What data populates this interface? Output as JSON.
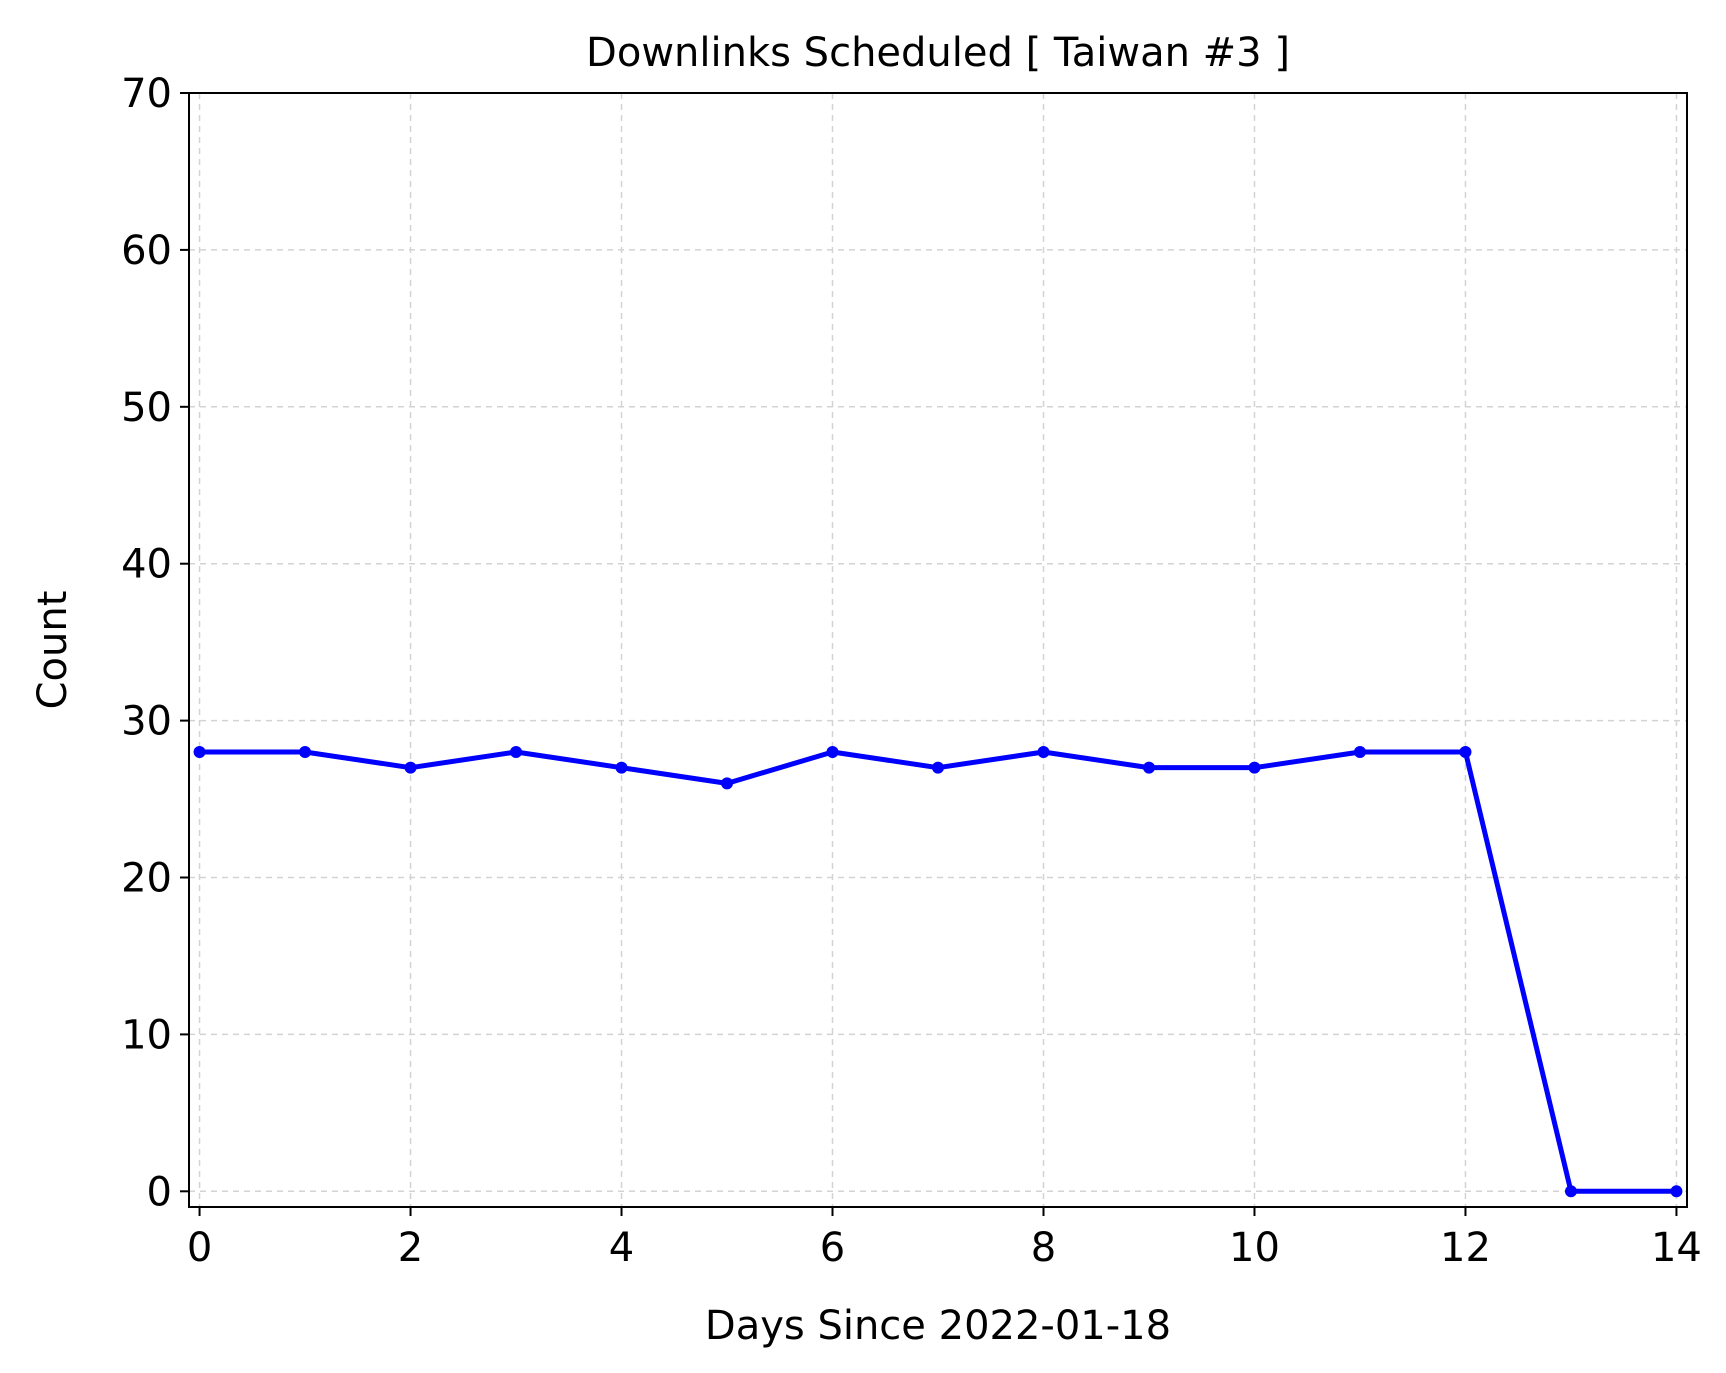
{
  "chart_data": {
    "type": "line",
    "title": "Downlinks Scheduled [ Taiwan #3 ]",
    "xlabel": "Days Since 2022-01-18",
    "ylabel": "Count",
    "xlim": [
      -0.1,
      14.1
    ],
    "ylim": [
      -1,
      70
    ],
    "xticks": [
      0,
      2,
      4,
      6,
      8,
      10,
      12,
      14
    ],
    "yticks": [
      0,
      10,
      20,
      30,
      40,
      50,
      60,
      70
    ],
    "grid": true,
    "series": [
      {
        "color": "#0000ff",
        "x": [
          0,
          1,
          2,
          3,
          4,
          5,
          6,
          7,
          8,
          9,
          10,
          11,
          12,
          13,
          14
        ],
        "values": [
          28,
          28,
          27,
          28,
          27,
          26,
          28,
          27,
          28,
          27,
          27,
          28,
          28,
          0,
          0
        ]
      }
    ]
  }
}
